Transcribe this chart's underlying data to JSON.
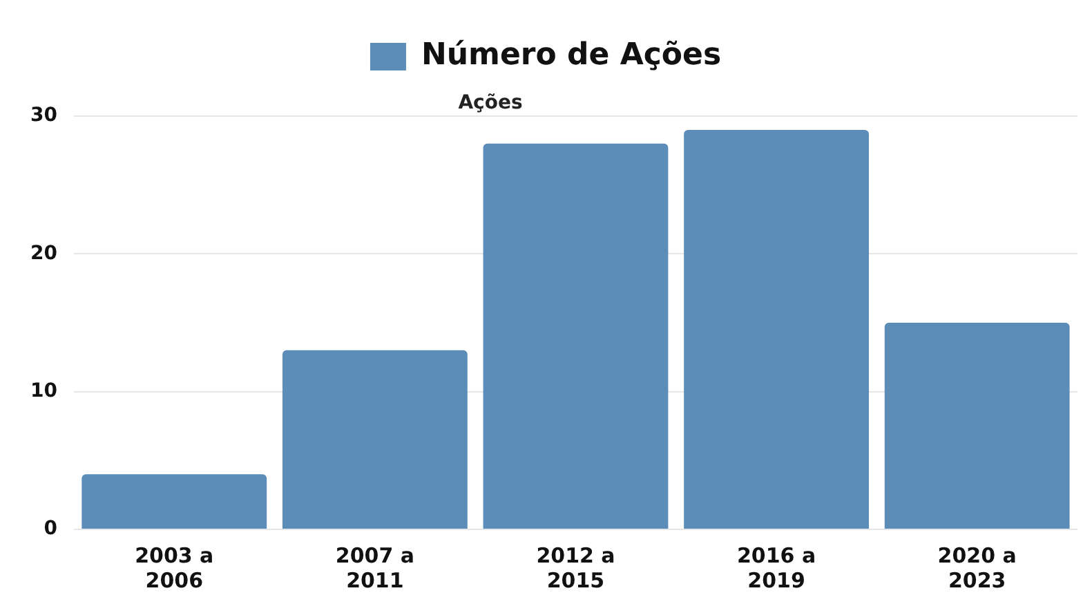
{
  "chart_data": {
    "type": "bar",
    "ylabel": "Ações",
    "categories": [
      "2003 a 2006",
      "2007 a 2011",
      "2012 a 2015",
      "2016 a 2019",
      "2020 a 2023"
    ],
    "series": [
      {
        "name": "Número de Ações",
        "color": "#5b8db8",
        "values": [
          4,
          13,
          28,
          29,
          15
        ]
      }
    ],
    "ylim": [
      0,
      30
    ],
    "yticks": [
      0,
      10,
      20,
      30
    ],
    "grid": "y",
    "legend": "top"
  }
}
